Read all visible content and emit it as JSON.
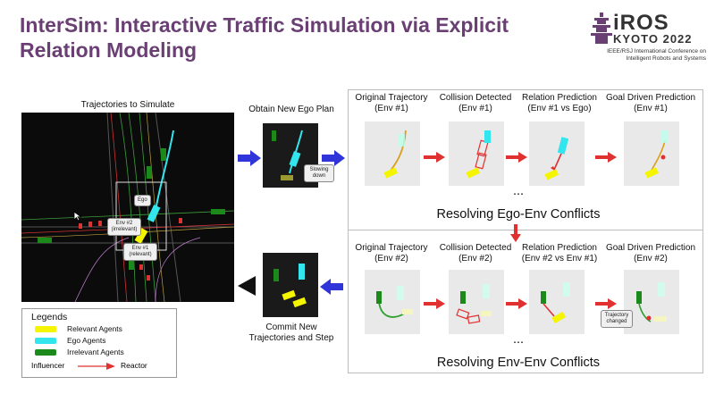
{
  "title": "InterSim: Interactive Traffic Simulation via Explicit Relation Modeling",
  "logo": {
    "name": "iROS",
    "city": "KYOTO 2022",
    "subtitle": "IEEE/RSJ International Conference on Intelligent Robots and Systems"
  },
  "main_panel": {
    "label": "Trajectories to Simulate",
    "tags": [
      "Ego",
      "Env #2 (irrelevant)",
      "Env #1 (relevant)"
    ]
  },
  "ego_plan": {
    "label": "Obtain New Ego Plan",
    "callout": "Slowing down"
  },
  "commit": {
    "label": "Commit New Trajectories and Step"
  },
  "top_row": {
    "steps": [
      {
        "title": "Original Trajectory",
        "sub": "(Env #1)"
      },
      {
        "title": "Collision Detected",
        "sub": "(Env #1)"
      },
      {
        "title": "Relation Prediction",
        "sub": "(Env #1 vs Ego)"
      },
      {
        "title": "Goal Driven Prediction",
        "sub": "(Env #1)"
      }
    ],
    "ellipsis": "...",
    "caption": "Resolving Ego-Env Conflicts"
  },
  "bottom_row": {
    "steps": [
      {
        "title": "Original Trajectory",
        "sub": "(Env #2)"
      },
      {
        "title": "Collision Detected",
        "sub": "(Env #2)"
      },
      {
        "title": "Relation Prediction",
        "sub": "(Env #2 vs Env #1)"
      },
      {
        "title": "Goal Driven Prediction",
        "sub": "(Env #2)"
      }
    ],
    "callout": "Trajectory changed",
    "ellipsis": "...",
    "caption": "Resolving Env-Env Conflicts"
  },
  "legend": {
    "title": "Legends",
    "items": [
      {
        "label": "Relevant Agents",
        "color": "#f5f500"
      },
      {
        "label": "Ego Agents",
        "color": "#33e6ee"
      },
      {
        "label": "Irrelevant Agents",
        "color": "#1b8a1b"
      }
    ],
    "influencer": "Influencer",
    "reactor": "Reactor"
  },
  "colors": {
    "title": "#6a3f73",
    "flow_arrow": "#2f35d8",
    "step_arrow": "#e03030"
  }
}
